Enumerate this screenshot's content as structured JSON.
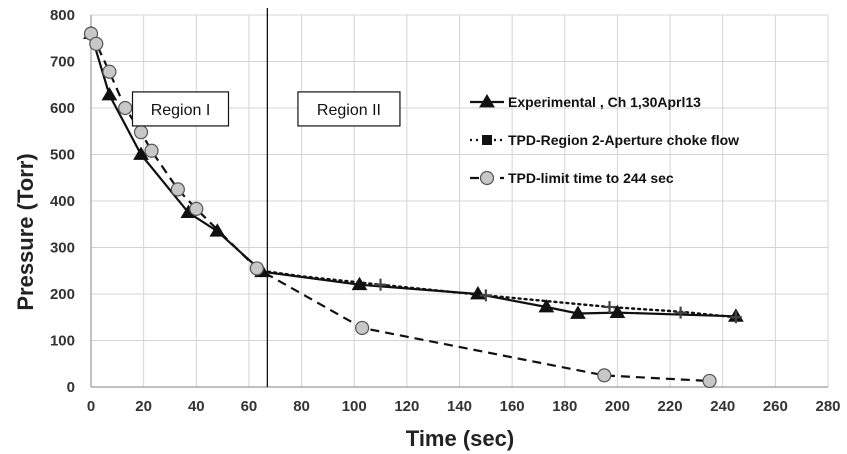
{
  "chart_data": {
    "type": "line",
    "xlabel": "Time (sec)",
    "ylabel": "Pressure (Torr)",
    "xlim": [
      0,
      280
    ],
    "ylim": [
      0,
      800
    ],
    "xticks": [
      0,
      20,
      40,
      60,
      80,
      100,
      120,
      140,
      160,
      180,
      200,
      220,
      240,
      260,
      280
    ],
    "yticks": [
      0,
      100,
      200,
      300,
      400,
      500,
      600,
      700,
      800
    ],
    "grid": true,
    "legend_position": "right",
    "series": [
      {
        "name": "Experimental , Ch 1,30Aprl13",
        "style": "solid",
        "marker": "triangle",
        "color": "#111111",
        "points": [
          [
            0,
            760
          ],
          [
            7,
            628
          ],
          [
            19,
            500
          ],
          [
            37,
            375
          ],
          [
            48,
            335
          ],
          [
            65,
            248
          ],
          [
            102,
            220
          ],
          [
            147,
            200
          ],
          [
            173,
            172
          ],
          [
            185,
            158
          ],
          [
            200,
            160
          ],
          [
            245,
            152
          ]
        ]
      },
      {
        "name": "TPD-Region 2-Aperture choke flow",
        "style": "dotted",
        "marker": "square",
        "color": "#111111",
        "points": [
          [
            65,
            250
          ],
          [
            80,
            238
          ],
          [
            110,
            220
          ],
          [
            150,
            197
          ],
          [
            197,
            172
          ],
          [
            224,
            162
          ],
          [
            245,
            150
          ]
        ]
      },
      {
        "name": "TPD-limit time to 244 sec",
        "style": "dashed",
        "marker": "circle",
        "color": "#111111",
        "points": [
          [
            0,
            760
          ],
          [
            2,
            738
          ],
          [
            7,
            678
          ],
          [
            13,
            600
          ],
          [
            19,
            548
          ],
          [
            23,
            508
          ],
          [
            33,
            425
          ],
          [
            40,
            383
          ],
          [
            63,
            255
          ],
          [
            103,
            127
          ],
          [
            195,
            25
          ],
          [
            235,
            13
          ]
        ]
      }
    ],
    "extra_markers": [
      {
        "shape": "plus",
        "points": [
          [
            110,
            220
          ],
          [
            150,
            197
          ],
          [
            197,
            172
          ],
          [
            224,
            160
          ],
          [
            245,
            150
          ]
        ]
      }
    ],
    "annotations": [
      {
        "text": "Region I",
        "type": "boxed-label",
        "x": 34,
        "y": 598
      },
      {
        "text": "Region II",
        "type": "boxed-label",
        "x": 98,
        "y": 598
      }
    ],
    "vertical_line": {
      "x": 67,
      "label": "region-boundary"
    }
  }
}
